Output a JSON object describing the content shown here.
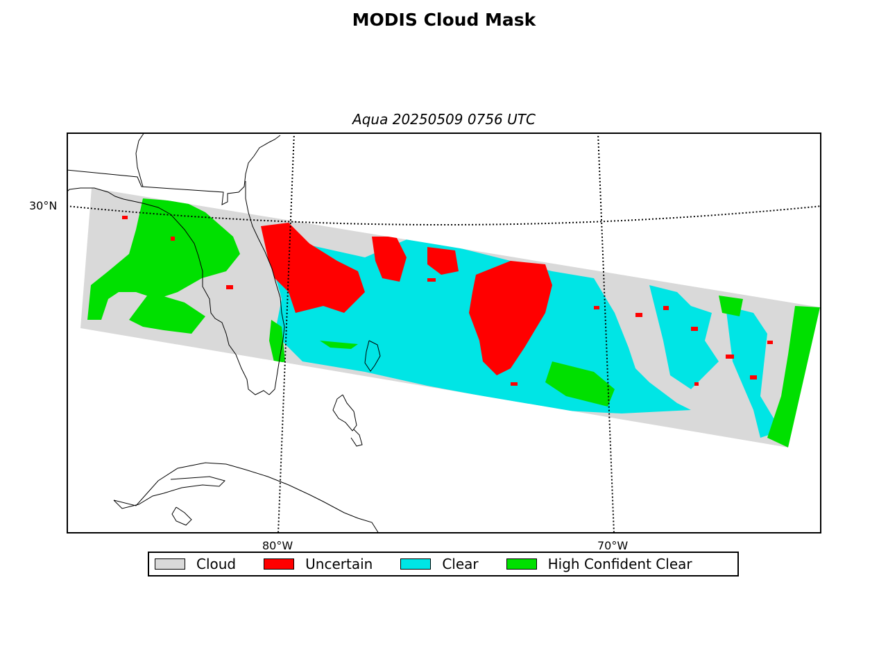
{
  "title": "MODIS Cloud Mask",
  "subtitle": "Aqua 20250509 0756 UTC",
  "lat_labels": [
    "30°N"
  ],
  "lon_labels": [
    "80°W",
    "70°W"
  ],
  "legend": [
    {
      "label": "Cloud",
      "color": "#d9d9d9"
    },
    {
      "label": "Uncertain",
      "color": "#ff0000"
    },
    {
      "label": "Clear",
      "color": "#00e5e5"
    },
    {
      "label": "High Confident Clear",
      "color": "#00e000"
    }
  ],
  "colors": {
    "cloud": "#d9d9d9",
    "uncertain": "#ff0000",
    "clear": "#00e5e5",
    "high_confident_clear": "#00e000"
  }
}
